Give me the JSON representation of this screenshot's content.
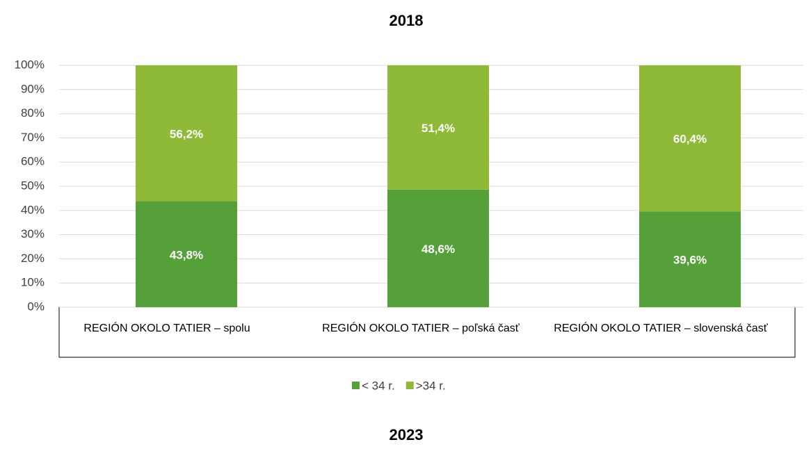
{
  "chart_data": [
    {
      "type": "stacked_bar",
      "title": "2018",
      "categories": [
        "REGIÓN OKOLO TATIER – spolu",
        "REGIÓN OKOLO TATIER – poľská časť",
        "REGIÓN OKOLO TATIER – slovenská časť"
      ],
      "series": [
        {
          "name": "< 34 r.",
          "color": "#56a03a",
          "values": [
            43.8,
            48.6,
            39.6
          ],
          "value_labels": [
            "43,8%",
            "48,6%",
            "39,6%"
          ]
        },
        {
          "name": ">34 r.",
          "color": "#8fba38",
          "values": [
            56.2,
            51.4,
            60.4
          ],
          "value_labels": [
            "56,2%",
            "51,4%",
            "60,4%"
          ]
        }
      ],
      "ylim": [
        0,
        100
      ],
      "yticks": [
        {
          "value": 0,
          "label": "0%"
        },
        {
          "value": 10,
          "label": "10%"
        },
        {
          "value": 20,
          "label": "20%"
        },
        {
          "value": 30,
          "label": "30%"
        },
        {
          "value": 40,
          "label": "40%"
        },
        {
          "value": 50,
          "label": "50%"
        },
        {
          "value": 60,
          "label": "60%"
        },
        {
          "value": 70,
          "label": "70%"
        },
        {
          "value": 80,
          "label": "80%"
        },
        {
          "value": 90,
          "label": "90%"
        },
        {
          "value": 100,
          "label": "100%"
        }
      ],
      "grid": true,
      "legend": "bottom"
    },
    {
      "type": "stacked_bar",
      "title": "2023"
    }
  ]
}
